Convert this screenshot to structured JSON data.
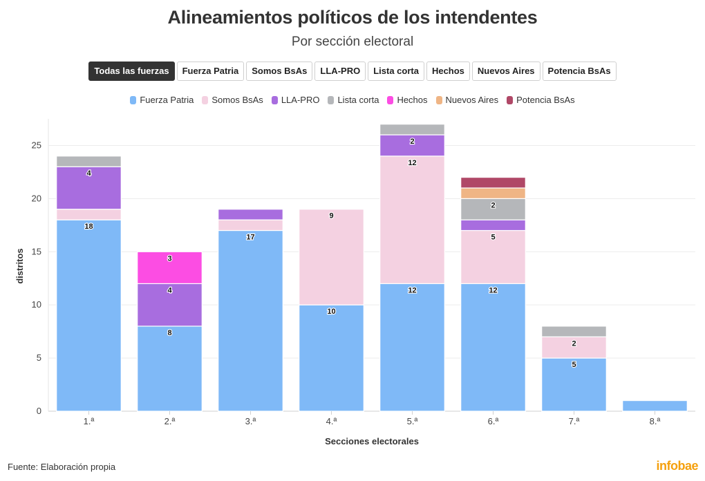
{
  "header": {
    "title": "Alineamientos políticos de los intendentes",
    "subtitle": "Por sección electoral"
  },
  "tabs": [
    {
      "label": "Todas las fuerzas",
      "active": true
    },
    {
      "label": "Fuerza Patria",
      "active": false
    },
    {
      "label": "Somos BsAs",
      "active": false
    },
    {
      "label": "LLA-PRO",
      "active": false
    },
    {
      "label": "Lista corta",
      "active": false
    },
    {
      "label": "Hechos",
      "active": false
    },
    {
      "label": "Nuevos Aires",
      "active": false
    },
    {
      "label": "Potencia BsAs",
      "active": false
    }
  ],
  "footer": {
    "source": "Fuente: Elaboración propia",
    "brand": "infobae"
  },
  "chart_data": {
    "type": "bar",
    "stacked": true,
    "title": "Alineamientos políticos de los intendentes",
    "subtitle": "Por sección electoral",
    "xlabel": "Secciones electorales",
    "ylabel": "distritos",
    "ylim": [
      0,
      27.5
    ],
    "yticks": [
      0,
      5,
      10,
      15,
      20,
      25
    ],
    "grid": true,
    "legend_position": "top",
    "categories": [
      "1.ª",
      "2.ª",
      "3.ª",
      "4.ª",
      "5.ª",
      "6.ª",
      "7.ª",
      "8.ª"
    ],
    "series": [
      {
        "name": "Fuerza Patria",
        "color": "#7fb9f7",
        "values": [
          18,
          8,
          17,
          10,
          12,
          12,
          5,
          1
        ],
        "labels": [
          "18",
          "8",
          "17",
          "10",
          "12",
          "12",
          "5",
          ""
        ]
      },
      {
        "name": "Somos BsAs",
        "color": "#f4d1e1",
        "values": [
          1,
          0,
          1,
          9,
          12,
          5,
          2,
          0
        ],
        "labels": [
          "",
          "",
          "",
          "9",
          "12",
          "5",
          "2",
          ""
        ]
      },
      {
        "name": "LLA-PRO",
        "color": "#a86ddf",
        "values": [
          4,
          4,
          1,
          0,
          2,
          1,
          0,
          0
        ],
        "labels": [
          "4",
          "4",
          "",
          "",
          "2",
          "",
          "",
          ""
        ]
      },
      {
        "name": "Lista corta",
        "color": "#b5b7ba",
        "values": [
          1,
          0,
          0,
          0,
          1,
          2,
          1,
          0
        ],
        "labels": [
          "",
          "",
          "",
          "",
          "",
          "2",
          "",
          ""
        ]
      },
      {
        "name": "Hechos",
        "color": "#fc4de3",
        "values": [
          0,
          3,
          0,
          0,
          0,
          0,
          0,
          0
        ],
        "labels": [
          "",
          "3",
          "",
          "",
          "",
          "",
          "",
          ""
        ]
      },
      {
        "name": "Nuevos Aires",
        "color": "#efb585",
        "values": [
          0,
          0,
          0,
          0,
          0,
          1,
          0,
          0
        ],
        "labels": [
          "",
          "",
          "",
          "",
          "",
          "",
          "",
          ""
        ]
      },
      {
        "name": "Potencia BsAs",
        "color": "#b04867",
        "values": [
          0,
          0,
          0,
          0,
          0,
          1,
          0,
          0
        ],
        "labels": [
          "",
          "",
          "",
          "",
          "",
          "",
          "",
          ""
        ]
      }
    ]
  }
}
